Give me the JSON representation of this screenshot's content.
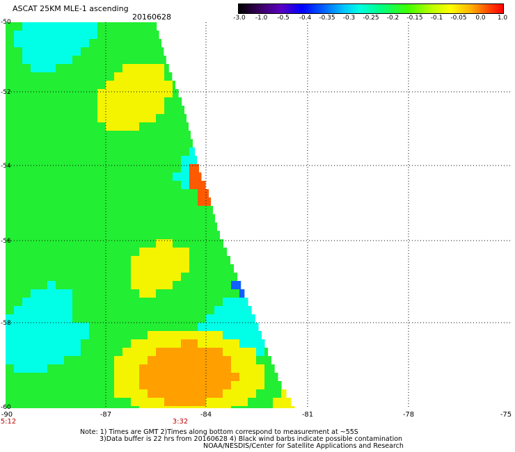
{
  "header": {
    "title": "ASCAT 25KM MLE-1 ascending",
    "date": "20160628"
  },
  "colorbar": {
    "ticks": [
      "-3.0",
      "-1.0",
      "-0.5",
      "-0.4",
      "-0.35",
      "-0.3",
      "-0.25",
      "-0.2",
      "-0.15",
      "-0.1",
      "-0.05",
      "0.0",
      "1.0"
    ]
  },
  "map": {
    "lat_labels": [
      "-50",
      "-52",
      "-54",
      "-56",
      "-58",
      "-60"
    ],
    "lon_labels": [
      "-90",
      "-87",
      "-84",
      "-81",
      "-78",
      "-75"
    ],
    "time_labels": [
      "5:12",
      "3:32"
    ],
    "colors": {
      "green": "#22ee33",
      "cyan": "#00ffe6",
      "yellow": "#f4f400",
      "orange": "#ffa000",
      "red": "#ff5a00",
      "blue": "#1060ff"
    }
  },
  "footer": {
    "note_line1": "Note: 1) Times are GMT 2)Times along bottom correspond to measurement at ~55S",
    "note_line2": "3)Data buffer is 22 hrs from 20160628 4) Black wind barbs indicate possible contamination",
    "note_line3": "NOAA/NESDIS/Center for Satellite Applications and Research"
  }
}
